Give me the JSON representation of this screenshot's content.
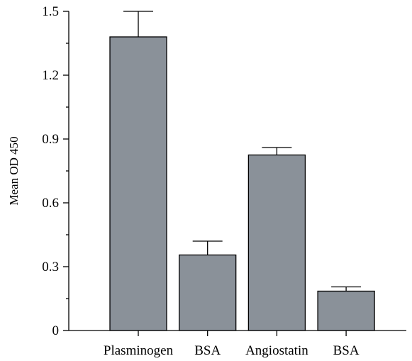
{
  "chart_data": {
    "type": "bar",
    "title": "",
    "xlabel": "",
    "ylabel": "Mean OD 450",
    "ylim": [
      0,
      1.5
    ],
    "yticks": [
      0,
      0.3,
      0.6,
      0.9,
      1.2,
      1.5
    ],
    "ytick_labels": [
      "0",
      "0.3",
      "0.6",
      "0.9",
      "1.2",
      "1.5"
    ],
    "categories": [
      "Plasminogen",
      "BSA",
      "Angiostatin",
      "BSA"
    ],
    "values": [
      1.38,
      0.355,
      0.825,
      0.185
    ],
    "error_upper": [
      0.12,
      0.065,
      0.035,
      0.02
    ],
    "bar_color": "#8a9199",
    "grid": false
  }
}
